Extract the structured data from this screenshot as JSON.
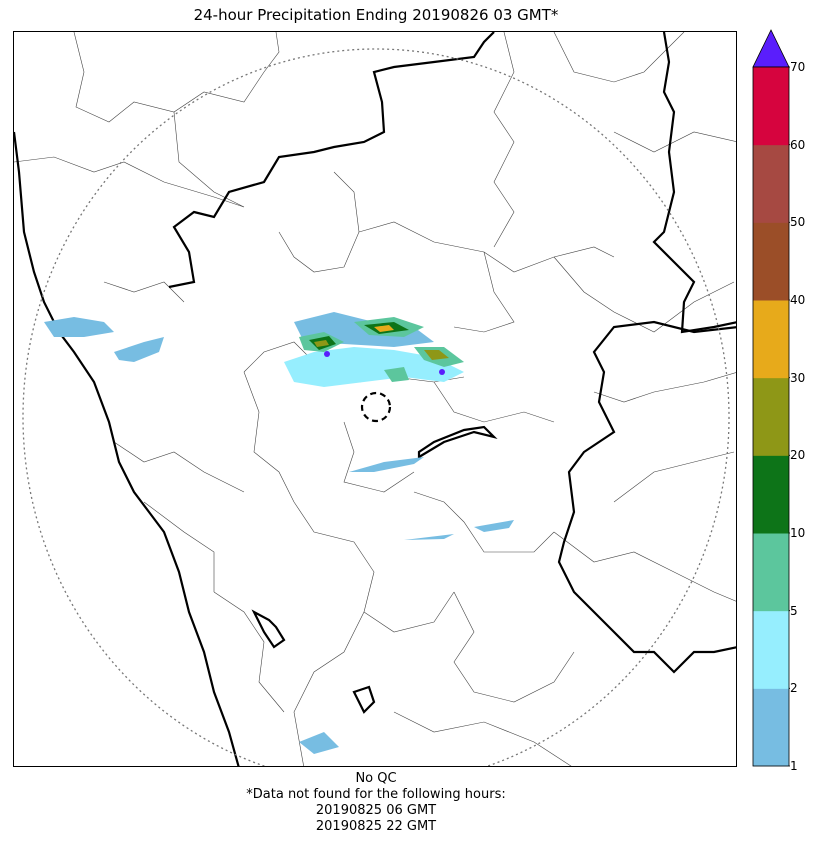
{
  "title": "24-hour Precipitation Ending 20190826 03 GMT*",
  "colorbar": {
    "ticks": [
      "1",
      "2",
      "5",
      "10",
      "20",
      "30",
      "40",
      "50",
      "60",
      "70"
    ],
    "colors": [
      "#77bde2",
      "#96eefe",
      "#5cc69d",
      "#0d7418",
      "#8e9717",
      "#e7aa1b",
      "#9b4e28",
      "#a64942",
      "#d6043e"
    ],
    "extend_color": "#5a1efc"
  },
  "footer": {
    "line1": "No QC",
    "line2": "*Data not found for the following hours:",
    "line3": "20190825 06 GMT",
    "line4": "20190825 22 GMT"
  },
  "map_colors": {
    "light": "#77bde2",
    "cyan": "#96eefe",
    "teal": "#5cc69d",
    "green": "#0d7418",
    "olive": "#8e9717",
    "orange": "#e7aa1b",
    "purple": "#5a1efc"
  }
}
